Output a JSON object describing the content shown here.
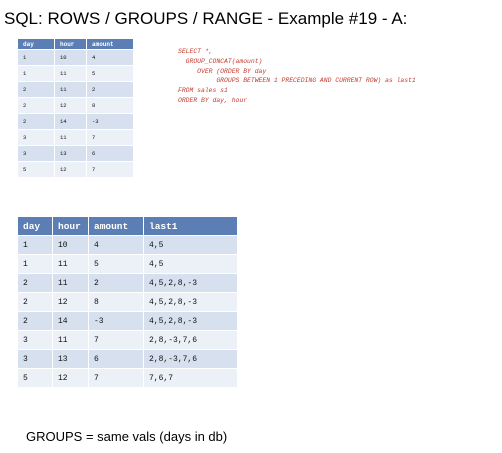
{
  "title": "SQL: ROWS / GROUPS / RANGE - Example #19 - A:",
  "source_table": {
    "columns": [
      "day",
      "hour",
      "amount"
    ],
    "rows": [
      [
        "1",
        "10",
        "4"
      ],
      [
        "1",
        "11",
        "5"
      ],
      [
        "2",
        "11",
        "2"
      ],
      [
        "2",
        "12",
        "8"
      ],
      [
        "2",
        "14",
        "-3"
      ],
      [
        "3",
        "11",
        "7"
      ],
      [
        "3",
        "13",
        "6"
      ],
      [
        "5",
        "12",
        "7"
      ]
    ]
  },
  "query": [
    "SELECT *,",
    "  GROUP_CONCAT(amount)",
    "     OVER (ORDER BY day",
    "          GROUPS BETWEEN 1 PRECEDING AND CURRENT ROW) as last1",
    "FROM sales s1",
    "ORDER BY day, hour"
  ],
  "result_table": {
    "columns": [
      "day",
      "hour",
      "amount",
      "last1"
    ],
    "rows": [
      [
        "1",
        "10",
        "4",
        "4,5"
      ],
      [
        "1",
        "11",
        "5",
        "4,5"
      ],
      [
        "2",
        "11",
        "2",
        "4,5,2,8,-3"
      ],
      [
        "2",
        "12",
        "8",
        "4,5,2,8,-3"
      ],
      [
        "2",
        "14",
        "-3",
        "4,5,2,8,-3"
      ],
      [
        "3",
        "11",
        "7",
        "2,8,-3,7,6"
      ],
      [
        "3",
        "13",
        "6",
        "2,8,-3,7,6"
      ],
      [
        "5",
        "12",
        "7",
        "7,6,7"
      ]
    ]
  },
  "footer": "GROUPS = same vals (days in db)"
}
